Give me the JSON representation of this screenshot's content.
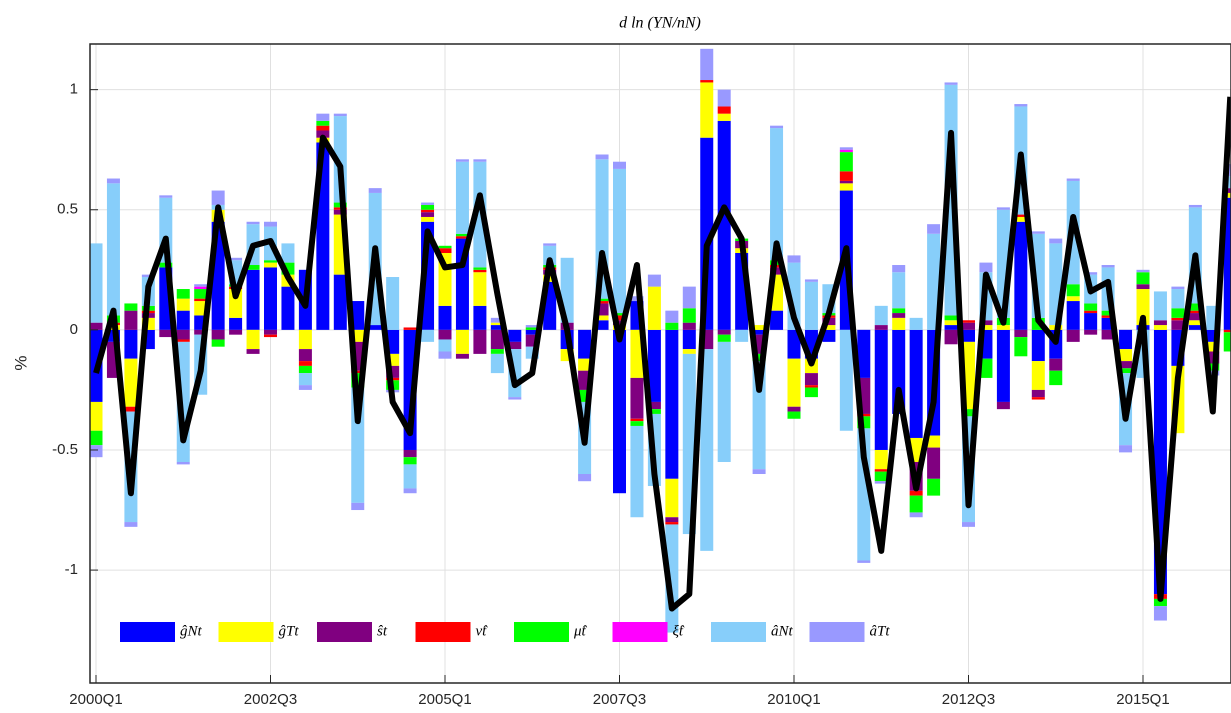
{
  "chart_data": {
    "type": "bar",
    "stacked": true,
    "title": "d ln (YN/nN)",
    "y_label": "%",
    "categories": [
      "2000Q1",
      null,
      null,
      null,
      null,
      null,
      null,
      null,
      null,
      null,
      "2002Q3",
      null,
      null,
      null,
      null,
      null,
      null,
      null,
      null,
      null,
      "2005Q1",
      null,
      null,
      null,
      null,
      null,
      null,
      null,
      null,
      null,
      "2007Q3",
      null,
      null,
      null,
      null,
      null,
      null,
      null,
      null,
      null,
      "2010Q1",
      null,
      null,
      null,
      null,
      null,
      null,
      null,
      null,
      null,
      "2012Q3",
      null,
      null,
      null,
      null,
      null,
      null,
      null,
      null,
      null,
      "2015Q1",
      null,
      null,
      null,
      null,
      null
    ],
    "ylim": [
      -1.47,
      1.19
    ],
    "yticks": [
      -1,
      -0.5,
      0,
      0.5,
      1
    ],
    "grid": true,
    "legend": "lower left",
    "series": [
      {
        "name": "ĝNt",
        "color": "#0000ff",
        "values": [
          -0.3,
          -0.05,
          -0.12,
          -0.08,
          0.26,
          0.08,
          0.06,
          0.45,
          0.05,
          0.25,
          0.26,
          0.18,
          0.25,
          0.78,
          0.23,
          0.12,
          0.02,
          -0.1,
          -0.5,
          0.45,
          0.1,
          0.38,
          0.1,
          0.02,
          -0.05,
          -0.02,
          0.2,
          -0.08,
          -0.12,
          0.04,
          -0.68,
          0.12,
          -0.3,
          -0.62,
          -0.08,
          0.8,
          0.87,
          0.32,
          -0.02,
          0.08,
          -0.12,
          -0.12,
          -0.05,
          0.58,
          -0.2,
          -0.5,
          -0.35,
          -0.45,
          -0.44,
          0.02,
          -0.05,
          -0.12,
          -0.3,
          0.45,
          -0.13,
          -0.12,
          0.12,
          0.07,
          0.05,
          -0.08,
          0.02,
          -1.1,
          -0.15,
          0.02,
          -0.05,
          0.55
        ]
      },
      {
        "name": "ĝTt",
        "color": "#ffff00",
        "values": [
          -0.12,
          0.02,
          -0.2,
          0.05,
          0,
          0.05,
          0.06,
          0.05,
          0.12,
          -0.08,
          0.02,
          0.05,
          -0.08,
          0.02,
          0.25,
          -0.05,
          0,
          -0.05,
          0,
          0.02,
          0.22,
          -0.1,
          0.14,
          0.01,
          0,
          0,
          0.03,
          -0.05,
          -0.05,
          0.02,
          0.02,
          -0.2,
          0.18,
          -0.16,
          -0.02,
          0.23,
          0.03,
          0.02,
          0.02,
          0.15,
          -0.2,
          -0.06,
          0.02,
          0.03,
          0,
          -0.08,
          0.05,
          -0.1,
          -0.05,
          0.02,
          -0.28,
          0.02,
          0.02,
          0.02,
          -0.12,
          0.02,
          0.02,
          0,
          0,
          -0.05,
          0.15,
          0.02,
          -0.28,
          0.02,
          -0.04,
          0.02
        ]
      },
      {
        "name": "ŝt",
        "color": "#800080",
        "values": [
          0.03,
          -0.15,
          0.08,
          0.02,
          -0.03,
          -0.04,
          -0.02,
          -0.04,
          -0.02,
          -0.02,
          -0.02,
          0,
          -0.05,
          0.03,
          0.02,
          -0.12,
          0,
          -0.05,
          -0.03,
          0.02,
          -0.04,
          -0.02,
          -0.1,
          -0.08,
          -0.03,
          -0.05,
          0.02,
          0.03,
          -0.08,
          0.05,
          0.02,
          -0.17,
          -0.03,
          -0.02,
          0.03,
          -0.08,
          -0.02,
          0.03,
          -0.08,
          0.03,
          -0.02,
          -0.05,
          0.03,
          0.01,
          -0.15,
          0.02,
          0.02,
          -0.12,
          -0.13,
          -0.06,
          0.03,
          0.02,
          -0.03,
          -0.03,
          -0.03,
          -0.05,
          -0.05,
          -0.02,
          -0.04,
          -0.03,
          0.02,
          0.02,
          0.04,
          0.03,
          -0.05,
          0.02
        ]
      },
      {
        "name": "ν̂t",
        "color": "#ff0000",
        "values": [
          0,
          0.01,
          -0.02,
          0.01,
          0,
          -0.01,
          0.01,
          0,
          0.01,
          0,
          -0.01,
          0,
          -0.02,
          0.02,
          0.01,
          -0.01,
          0,
          -0.01,
          0.01,
          0.01,
          0.02,
          0.01,
          0.01,
          0,
          0,
          0,
          0.01,
          0,
          0,
          0.01,
          0.02,
          -0.01,
          0,
          -0.01,
          0,
          0.01,
          0.03,
          0,
          0,
          0.01,
          0,
          -0.01,
          0.01,
          0.04,
          -0.01,
          -0.01,
          0,
          -0.02,
          0,
          0,
          0.01,
          0,
          0,
          0.01,
          -0.01,
          0,
          0,
          0.01,
          0.01,
          0,
          0,
          -0.02,
          0.01,
          0.01,
          0,
          -0.01
        ]
      },
      {
        "name": "μ̂t",
        "color": "#00ff00",
        "values": [
          -0.06,
          0.03,
          0.03,
          0.02,
          0.02,
          0.04,
          0.04,
          -0.03,
          0.01,
          0.02,
          0.01,
          0.05,
          -0.03,
          0.02,
          0.02,
          -0.06,
          0,
          -0.04,
          -0.03,
          0.02,
          0.01,
          0.01,
          0.01,
          -0.02,
          0,
          0.01,
          0.01,
          0,
          -0.05,
          0.01,
          0.01,
          -0.02,
          -0.02,
          0.03,
          0.06,
          0,
          -0.03,
          0.01,
          -0.03,
          0.02,
          -0.03,
          -0.04,
          0.01,
          0.08,
          -0.05,
          -0.04,
          0.02,
          -0.07,
          -0.07,
          0.02,
          -0.03,
          -0.08,
          0.03,
          -0.08,
          0.05,
          -0.06,
          0.05,
          0.03,
          0.02,
          -0.02,
          0.05,
          -0.03,
          0.04,
          0.03,
          -0.03,
          -0.08
        ]
      },
      {
        "name": "ξ̂t",
        "color": "#ff00ff",
        "values": [
          0,
          0,
          0,
          0,
          0,
          0,
          0.01,
          0,
          0,
          0,
          0,
          0,
          0,
          0,
          0,
          0,
          0,
          0,
          0,
          0,
          0,
          0,
          0,
          0,
          0,
          0,
          0,
          0,
          0,
          0,
          0,
          0,
          0,
          0,
          0,
          0,
          0,
          0,
          0,
          0,
          0,
          0,
          0,
          0.01,
          0,
          0,
          0,
          0,
          0,
          0,
          0,
          0,
          0,
          0,
          0,
          0,
          0,
          0,
          0,
          0,
          0,
          0,
          0,
          0,
          0,
          0
        ]
      },
      {
        "name": "âNt",
        "color": "#87cefa",
        "values": [
          0.33,
          0.55,
          -0.46,
          0.12,
          0.27,
          -0.5,
          -0.25,
          0.02,
          0.1,
          0.17,
          0.14,
          0.08,
          -0.05,
          0,
          0.36,
          -0.48,
          0.55,
          0.22,
          -0.1,
          -0.05,
          -0.05,
          0.3,
          0.44,
          -0.08,
          -0.2,
          -0.05,
          0.08,
          0.27,
          -0.3,
          0.58,
          0.6,
          -0.38,
          -0.3,
          -0.45,
          -0.75,
          -0.84,
          -0.5,
          -0.05,
          -0.45,
          0.55,
          0.28,
          0.2,
          0.12,
          -0.42,
          -0.55,
          0.08,
          0.15,
          0.05,
          0.4,
          0.96,
          -0.44,
          0.2,
          0.45,
          0.45,
          0.35,
          0.34,
          0.43,
          0.12,
          0.18,
          -0.3,
          -0.2,
          0.12,
          0.08,
          0.4,
          0.1,
          0.05
        ]
      },
      {
        "name": "âTt",
        "color": "#9999ff",
        "values": [
          -0.05,
          0.02,
          -0.02,
          0.01,
          0.01,
          -0.01,
          0.01,
          0.06,
          0.01,
          0.01,
          0.02,
          0,
          -0.02,
          0.03,
          0.01,
          -0.03,
          0.02,
          -0.01,
          -0.02,
          0.01,
          -0.03,
          0.01,
          0.01,
          0.02,
          -0.01,
          0.01,
          0.01,
          0,
          -0.03,
          0.02,
          0.03,
          0.02,
          0.05,
          0.05,
          0.09,
          0.13,
          0.07,
          0,
          -0.02,
          0.01,
          0.03,
          0.01,
          0,
          0.01,
          -0.01,
          -0.01,
          0.03,
          -0.02,
          0.04,
          0.01,
          -0.02,
          0.04,
          0.01,
          0.01,
          0.01,
          0.02,
          0.01,
          0.01,
          0.01,
          -0.03,
          0.01,
          -0.06,
          0.01,
          0.01,
          -0.02,
          0.05
        ]
      }
    ],
    "line": {
      "color": "#000000",
      "values": [
        -0.18,
        0.08,
        -0.68,
        0.18,
        0.38,
        -0.46,
        -0.17,
        0.51,
        0.14,
        0.35,
        0.37,
        0.22,
        0.1,
        0.8,
        0.68,
        -0.38,
        0.34,
        -0.3,
        -0.43,
        0.41,
        0.26,
        0.27,
        0.56,
        0.15,
        -0.23,
        -0.18,
        0.29,
        0,
        -0.47,
        0.32,
        -0.04,
        0.27,
        -0.6,
        -1.16,
        -1.1,
        0.35,
        0.51,
        0.38,
        -0.25,
        0.36,
        0.05,
        -0.14,
        0.07,
        0.34,
        -0.53,
        -0.92,
        -0.25,
        -0.66,
        -0.3,
        0.82,
        -0.73,
        0.23,
        0.03,
        0.73,
        0.04,
        -0.05,
        0.47,
        0.16,
        0.2,
        -0.37,
        0.05,
        -1.12,
        -0.2,
        0.31,
        -0.34,
        0.97
      ]
    }
  }
}
